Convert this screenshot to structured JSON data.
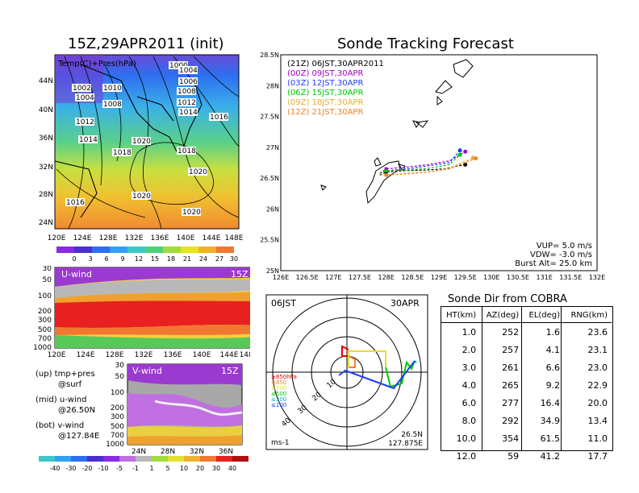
{
  "left_title": "15Z,29APR2011 (init)",
  "right_title": "Sonde Tracking Forecast",
  "map_panel": {
    "label": "Temp(C)+Pres(hPa)",
    "lat_ticks": [
      "44N",
      "40N",
      "36N",
      "32N",
      "28N",
      "24N"
    ],
    "lon_ticks": [
      "120E",
      "124E",
      "128E",
      "132E",
      "136E",
      "140E",
      "144E",
      "148E"
    ],
    "isobar_labels": [
      "1000",
      "1002",
      "1004",
      "1006",
      "1008",
      "1010",
      "1012",
      "1014",
      "1016",
      "1018",
      "1020",
      "1000",
      "1004",
      "1006",
      "1008",
      "1010",
      "1012",
      "1014",
      "1016",
      "1018",
      "1020",
      "1006",
      "1008",
      "1018"
    ],
    "colorbar": [
      "0",
      "3",
      "6",
      "9",
      "12",
      "15",
      "18",
      "21",
      "24",
      "27",
      "30"
    ]
  },
  "uwind_panel": {
    "label": "U-wind",
    "time": "15Z",
    "p_ticks": [
      "30",
      "50",
      "100",
      "200",
      "300",
      "500",
      "700",
      "1000"
    ],
    "lon_ticks": [
      "120E",
      "124E",
      "128E",
      "132E",
      "136E",
      "140E",
      "144E",
      "148E"
    ]
  },
  "vwind_panel": {
    "label": "V-wind",
    "time": "15Z",
    "p_ticks": [
      "30",
      "50",
      "100",
      "200",
      "300",
      "500",
      "700",
      "1000"
    ],
    "lat_ticks": [
      "24N",
      "28N",
      "32N",
      "36N"
    ],
    "colorbar": [
      "-40",
      "-30",
      "-20",
      "-10",
      "-5",
      "-1",
      "1",
      "5",
      "10",
      "20",
      "30",
      "40"
    ]
  },
  "legend_notes": [
    "(up) tmp+pres",
    "@surf",
    "(mid) u-wind",
    "@26.50N",
    "(bot) v-wind",
    "@127.84E"
  ],
  "track_panel": {
    "lat_ticks": [
      "28.5N",
      "28N",
      "27.5N",
      "27N",
      "26.5N",
      "26N",
      "25.5N",
      "25N"
    ],
    "lon_ticks": [
      "126E",
      "126.5E",
      "127E",
      "127.5E",
      "128E",
      "128.5E",
      "129E",
      "129.5E",
      "130E",
      "130.5E",
      "131E",
      "131.5E",
      "132E"
    ],
    "launches": [
      {
        "text": "(21Z) 06JST,30APR2011",
        "color": "#000000"
      },
      {
        "text": "(00Z) 09JST,30APR",
        "color": "#a000c8"
      },
      {
        "text": "(03Z) 12JST,30APR",
        "color": "#1e3cff"
      },
      {
        "text": "(06Z) 15JST,30APR",
        "color": "#00c800"
      },
      {
        "text": "(09Z) 18JST,30APR",
        "color": "#e6af2d"
      },
      {
        "text": "(12Z) 21JST,30APR",
        "color": "#f08228"
      }
    ],
    "params": [
      "VUP= 5.0 m/s",
      "VDW= -3.0 m/s",
      "Burst Alt= 25.0 km"
    ]
  },
  "polar_panel": {
    "left_label": "06JST",
    "right_label": "30APR",
    "ring_labels": [
      "10",
      "20",
      "30",
      "40"
    ],
    "layer_legend": [
      {
        "text": "≥850hPa",
        "color": "#e60000"
      },
      {
        "text": "≤850",
        "color": "#f08228"
      },
      {
        "text": "≤700",
        "color": "#e6dc32"
      },
      {
        "text": "≤500",
        "color": "#00c800"
      },
      {
        "text": "≤300",
        "color": "#00b4b4"
      },
      {
        "text": "≤100",
        "color": "#1e3cff"
      }
    ],
    "unit": "ms-1",
    "loc_lat": "26.5N",
    "loc_lon": "127.875E"
  },
  "table": {
    "title": "Sonde Dir from COBRA",
    "headers": [
      "HT(km)",
      "AZ(deg)",
      "EL(deg)",
      "RNG(km)"
    ],
    "rows": [
      [
        "1.0",
        "252",
        "1.6",
        "23.6"
      ],
      [
        "2.0",
        "257",
        "4.1",
        "23.1"
      ],
      [
        "3.0",
        "261",
        "6.6",
        "23.0"
      ],
      [
        "4.0",
        "265",
        "9.2",
        "22.9"
      ],
      [
        "6.0",
        "277",
        "16.4",
        "20.0"
      ],
      [
        "8.0",
        "292",
        "34.9",
        "13.4"
      ],
      [
        "10.0",
        "354",
        "61.5",
        "11.0"
      ],
      [
        "12.0",
        "59",
        "41.2",
        "17.7"
      ]
    ]
  },
  "chart_data": [
    {
      "type": "line",
      "title": "Sonde Tracking Forecast",
      "xlabel": "",
      "ylabel": "",
      "xlim": [
        126,
        132
      ],
      "ylim": [
        25,
        28.5
      ],
      "series": [
        {
          "name": "(21Z) 06JST,30APR2011",
          "color": "#000000",
          "x": [
            127.875,
            128.0,
            128.3,
            128.7,
            129.1,
            129.5
          ],
          "y": [
            26.55,
            26.6,
            26.62,
            26.63,
            26.65,
            26.72
          ]
        },
        {
          "name": "(00Z) 09JST,30APR",
          "color": "#a000c8",
          "x": [
            127.875,
            128.0,
            128.4,
            128.8,
            129.2,
            129.5
          ],
          "y": [
            26.58,
            26.65,
            26.68,
            26.72,
            26.78,
            26.93
          ]
        },
        {
          "name": "(03Z) 12JST,30APR",
          "color": "#1e3cff",
          "x": [
            127.875,
            128.0,
            128.4,
            128.8,
            129.2,
            129.4
          ],
          "y": [
            26.58,
            26.62,
            26.65,
            26.7,
            26.75,
            26.95
          ]
        },
        {
          "name": "(06Z) 15JST,30APR",
          "color": "#00c800",
          "x": [
            127.875,
            128.0,
            128.4,
            128.8,
            129.2,
            129.4
          ],
          "y": [
            26.58,
            26.62,
            26.63,
            26.66,
            26.72,
            26.88
          ]
        },
        {
          "name": "(09Z) 18JST,30APR",
          "color": "#e6af2d",
          "x": [
            127.875,
            128.0,
            128.4,
            128.8,
            129.2,
            129.65
          ],
          "y": [
            26.55,
            26.55,
            26.58,
            26.6,
            26.66,
            26.83
          ]
        },
        {
          "name": "(12Z) 21JST,30APR",
          "color": "#f08228",
          "x": [
            127.875,
            128.0,
            128.4,
            128.8,
            129.2,
            129.7
          ],
          "y": [
            26.55,
            26.55,
            26.57,
            26.6,
            26.65,
            26.82
          ]
        }
      ]
    }
  ]
}
